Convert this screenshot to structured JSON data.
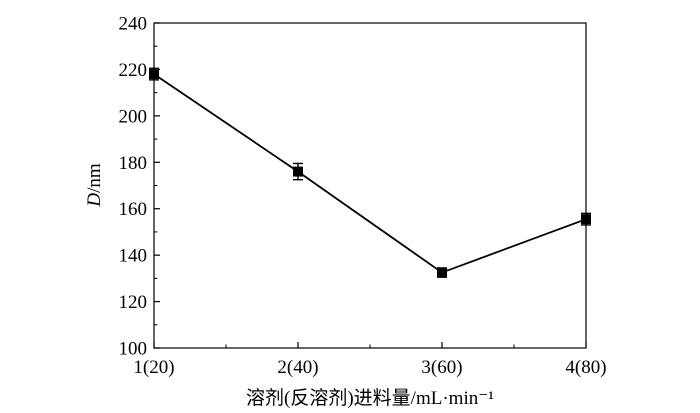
{
  "chart_data": {
    "type": "line",
    "categories": [
      "1(20)",
      "2(40)",
      "3(60)",
      "4(80)"
    ],
    "x": [
      1,
      2,
      3,
      4
    ],
    "series": [
      {
        "values": [
          218,
          176,
          132.5,
          155.5
        ],
        "errors": [
          2.5,
          3.5,
          2.0,
          2.5
        ],
        "color": "#000000",
        "marker": "square"
      }
    ],
    "title": "",
    "xlabel": "溶剂(反溶剂)进料量/mL·min⁻¹",
    "ylabel_italic": "D",
    "ylabel_rest": "/nm",
    "ylim": [
      100,
      240
    ],
    "yticks": [
      100,
      120,
      140,
      160,
      180,
      200,
      220,
      240
    ],
    "xlim": [
      1,
      4
    ],
    "grid": false,
    "legend": "none"
  }
}
